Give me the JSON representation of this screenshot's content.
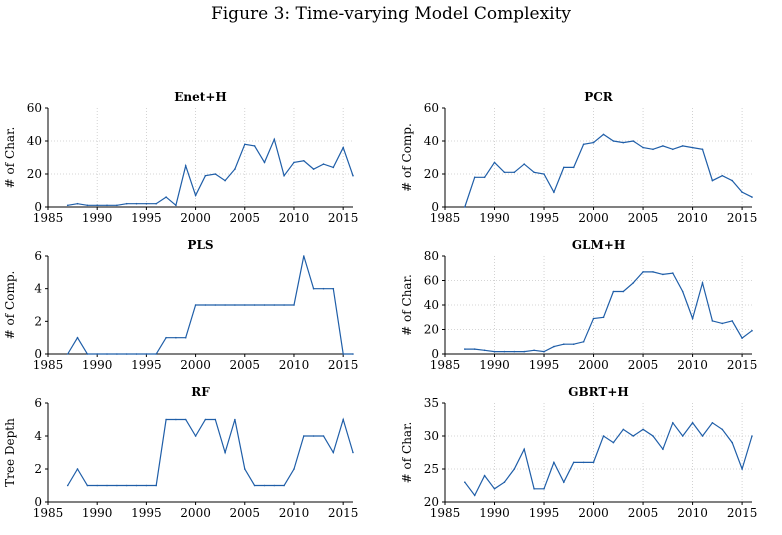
{
  "figure_title": "Figure 3: Time-varying Model Complexity",
  "chart_data": [
    {
      "type": "line",
      "title": "Enet+H",
      "xlabel": "",
      "ylabel": "# of Char.",
      "xlim": [
        1985,
        2016
      ],
      "ylim": [
        0,
        60
      ],
      "yticks": [
        0,
        20,
        40,
        60
      ],
      "xticks": [
        1985,
        1990,
        1995,
        2000,
        2005,
        2010,
        2015
      ],
      "grid": true,
      "x": [
        1987,
        1988,
        1989,
        1990,
        1991,
        1992,
        1993,
        1994,
        1995,
        1996,
        1997,
        1998,
        1999,
        2000,
        2001,
        2002,
        2003,
        2004,
        2005,
        2006,
        2007,
        2008,
        2009,
        2010,
        2011,
        2012,
        2013,
        2014,
        2015,
        2016
      ],
      "values": [
        1,
        2,
        1,
        1,
        1,
        1,
        2,
        2,
        2,
        2,
        6,
        1,
        25,
        7,
        19,
        20,
        16,
        23,
        38,
        37,
        27,
        41,
        19,
        27,
        28,
        23,
        26,
        24,
        36,
        19
      ]
    },
    {
      "type": "line",
      "title": "PCR",
      "xlabel": "",
      "ylabel": "# of Comp.",
      "xlim": [
        1985,
        2016
      ],
      "ylim": [
        0,
        60
      ],
      "yticks": [
        0,
        20,
        40,
        60
      ],
      "xticks": [
        1985,
        1990,
        1995,
        2000,
        2005,
        2010,
        2015
      ],
      "grid": true,
      "x": [
        1987,
        1988,
        1989,
        1990,
        1991,
        1992,
        1993,
        1994,
        1995,
        1996,
        1997,
        1998,
        1999,
        2000,
        2001,
        2002,
        2003,
        2004,
        2005,
        2006,
        2007,
        2008,
        2009,
        2010,
        2011,
        2012,
        2013,
        2014,
        2015,
        2016
      ],
      "values": [
        0,
        18,
        18,
        27,
        21,
        21,
        26,
        21,
        20,
        9,
        24,
        24,
        38,
        39,
        44,
        40,
        39,
        40,
        36,
        35,
        37,
        35,
        37,
        36,
        35,
        16,
        19,
        16,
        9,
        6
      ]
    },
    {
      "type": "line",
      "title": "PLS",
      "xlabel": "",
      "ylabel": "# of Comp.",
      "xlim": [
        1985,
        2016
      ],
      "ylim": [
        0,
        6
      ],
      "yticks": [
        0,
        2,
        4,
        6
      ],
      "xticks": [
        1985,
        1990,
        1995,
        2000,
        2005,
        2010,
        2015
      ],
      "grid": false,
      "x": [
        1987,
        1988,
        1989,
        1990,
        1991,
        1992,
        1993,
        1994,
        1995,
        1996,
        1997,
        1998,
        1999,
        2000,
        2001,
        2002,
        2003,
        2004,
        2005,
        2006,
        2007,
        2008,
        2009,
        2010,
        2011,
        2012,
        2013,
        2014,
        2015,
        2016
      ],
      "values": [
        0,
        1,
        0,
        0,
        0,
        0,
        0,
        0,
        0,
        0,
        1,
        1,
        1,
        3,
        3,
        3,
        3,
        3,
        3,
        3,
        3,
        3,
        3,
        3,
        6,
        4,
        4,
        4,
        0,
        0
      ]
    },
    {
      "type": "line",
      "title": "GLM+H",
      "xlabel": "",
      "ylabel": "# of Char.",
      "xlim": [
        1985,
        2016
      ],
      "ylim": [
        0,
        80
      ],
      "yticks": [
        0,
        20,
        40,
        60,
        80
      ],
      "xticks": [
        1985,
        1990,
        1995,
        2000,
        2005,
        2010,
        2015
      ],
      "grid": true,
      "x": [
        1987,
        1988,
        1989,
        1990,
        1991,
        1992,
        1993,
        1994,
        1995,
        1996,
        1997,
        1998,
        1999,
        2000,
        2001,
        2002,
        2003,
        2004,
        2005,
        2006,
        2007,
        2008,
        2009,
        2010,
        2011,
        2012,
        2013,
        2014,
        2015,
        2016
      ],
      "values": [
        4,
        4,
        3,
        2,
        2,
        2,
        2,
        3,
        2,
        6,
        8,
        8,
        10,
        29,
        30,
        51,
        51,
        58,
        67,
        67,
        65,
        66,
        51,
        29,
        58,
        27,
        25,
        27,
        13,
        19
      ]
    },
    {
      "type": "line",
      "title": "RF",
      "xlabel": "",
      "ylabel": "Tree Depth",
      "xlim": [
        1985,
        2016
      ],
      "ylim": [
        0,
        6
      ],
      "yticks": [
        0,
        2,
        4,
        6
      ],
      "xticks": [
        1985,
        1990,
        1995,
        2000,
        2005,
        2010,
        2015
      ],
      "grid": false,
      "x": [
        1987,
        1988,
        1989,
        1990,
        1991,
        1992,
        1993,
        1994,
        1995,
        1996,
        1997,
        1998,
        1999,
        2000,
        2001,
        2002,
        2003,
        2004,
        2005,
        2006,
        2007,
        2008,
        2009,
        2010,
        2011,
        2012,
        2013,
        2014,
        2015,
        2016
      ],
      "values": [
        1,
        2,
        1,
        1,
        1,
        1,
        1,
        1,
        1,
        1,
        5,
        5,
        5,
        4,
        5,
        5,
        3,
        5,
        2,
        1,
        1,
        1,
        1,
        2,
        4,
        4,
        4,
        3,
        5,
        3
      ]
    },
    {
      "type": "line",
      "title": "GBRT+H",
      "xlabel": "",
      "ylabel": "# of Char.",
      "xlim": [
        1985,
        2016
      ],
      "ylim": [
        20,
        35
      ],
      "yticks": [
        20,
        25,
        30,
        35
      ],
      "xticks": [
        1985,
        1990,
        1995,
        2000,
        2005,
        2010,
        2015
      ],
      "grid": true,
      "x": [
        1987,
        1988,
        1989,
        1990,
        1991,
        1992,
        1993,
        1994,
        1995,
        1996,
        1997,
        1998,
        1999,
        2000,
        2001,
        2002,
        2003,
        2004,
        2005,
        2006,
        2007,
        2008,
        2009,
        2010,
        2011,
        2012,
        2013,
        2014,
        2015,
        2016
      ],
      "values": [
        23,
        21,
        24,
        22,
        23,
        25,
        28,
        22,
        22,
        26,
        23,
        26,
        26,
        26,
        30,
        29,
        31,
        30,
        31,
        30,
        28,
        32,
        30,
        32,
        30,
        32,
        31,
        29,
        25,
        30
      ]
    }
  ]
}
